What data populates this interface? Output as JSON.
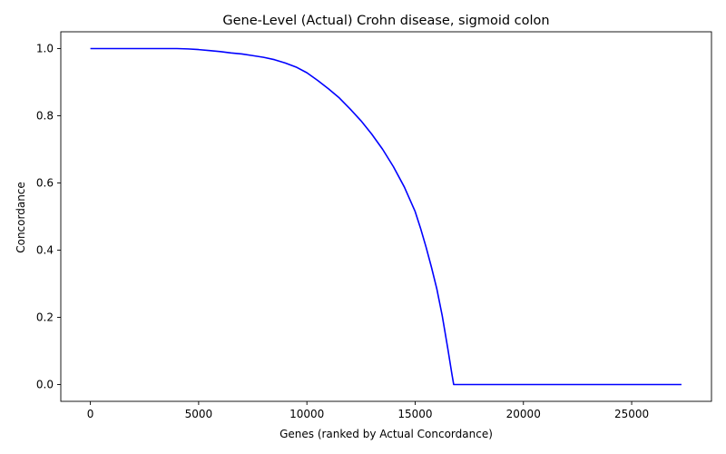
{
  "chart_data": {
    "type": "line",
    "title": "Gene-Level (Actual) Crohn disease, sigmoid colon",
    "xlabel": "Genes (ranked by Actual Concordance)",
    "ylabel": "Concordance",
    "xlim": [
      -1366,
      28686
    ],
    "ylim": [
      -0.05,
      1.05
    ],
    "xticks": [
      0,
      5000,
      10000,
      15000,
      20000,
      25000
    ],
    "yticks": [
      0.0,
      0.2,
      0.4,
      0.6,
      0.8,
      1.0
    ],
    "xtick_labels": [
      "0",
      "5000",
      "10000",
      "15000",
      "20000",
      "25000"
    ],
    "ytick_labels": [
      "0.0",
      "0.2",
      "0.4",
      "0.6",
      "0.8",
      "1.0"
    ],
    "grid": false,
    "legend": "none",
    "series": [
      {
        "color": "#0000ff",
        "x": [
          0,
          1000,
          2000,
          3000,
          4000,
          4500,
          5000,
          5500,
          6000,
          6500,
          7000,
          7500,
          8000,
          8500,
          9000,
          9500,
          10000,
          10500,
          11000,
          11500,
          12000,
          12500,
          13000,
          13500,
          14000,
          14500,
          15000,
          15250,
          15500,
          15750,
          16000,
          16250,
          16500,
          16700,
          16780,
          17000,
          18000,
          20000,
          22000,
          24000,
          26000,
          27300
        ],
        "y": [
          1.0,
          1.0,
          1.0,
          1.0,
          1.0,
          0.999,
          0.997,
          0.994,
          0.991,
          0.987,
          0.984,
          0.979,
          0.974,
          0.967,
          0.957,
          0.945,
          0.928,
          0.905,
          0.88,
          0.853,
          0.82,
          0.785,
          0.745,
          0.7,
          0.648,
          0.588,
          0.515,
          0.465,
          0.41,
          0.35,
          0.285,
          0.205,
          0.11,
          0.03,
          0.0,
          0.0,
          0.0,
          0.0,
          0.0,
          0.0,
          0.0,
          0.0
        ]
      }
    ]
  }
}
